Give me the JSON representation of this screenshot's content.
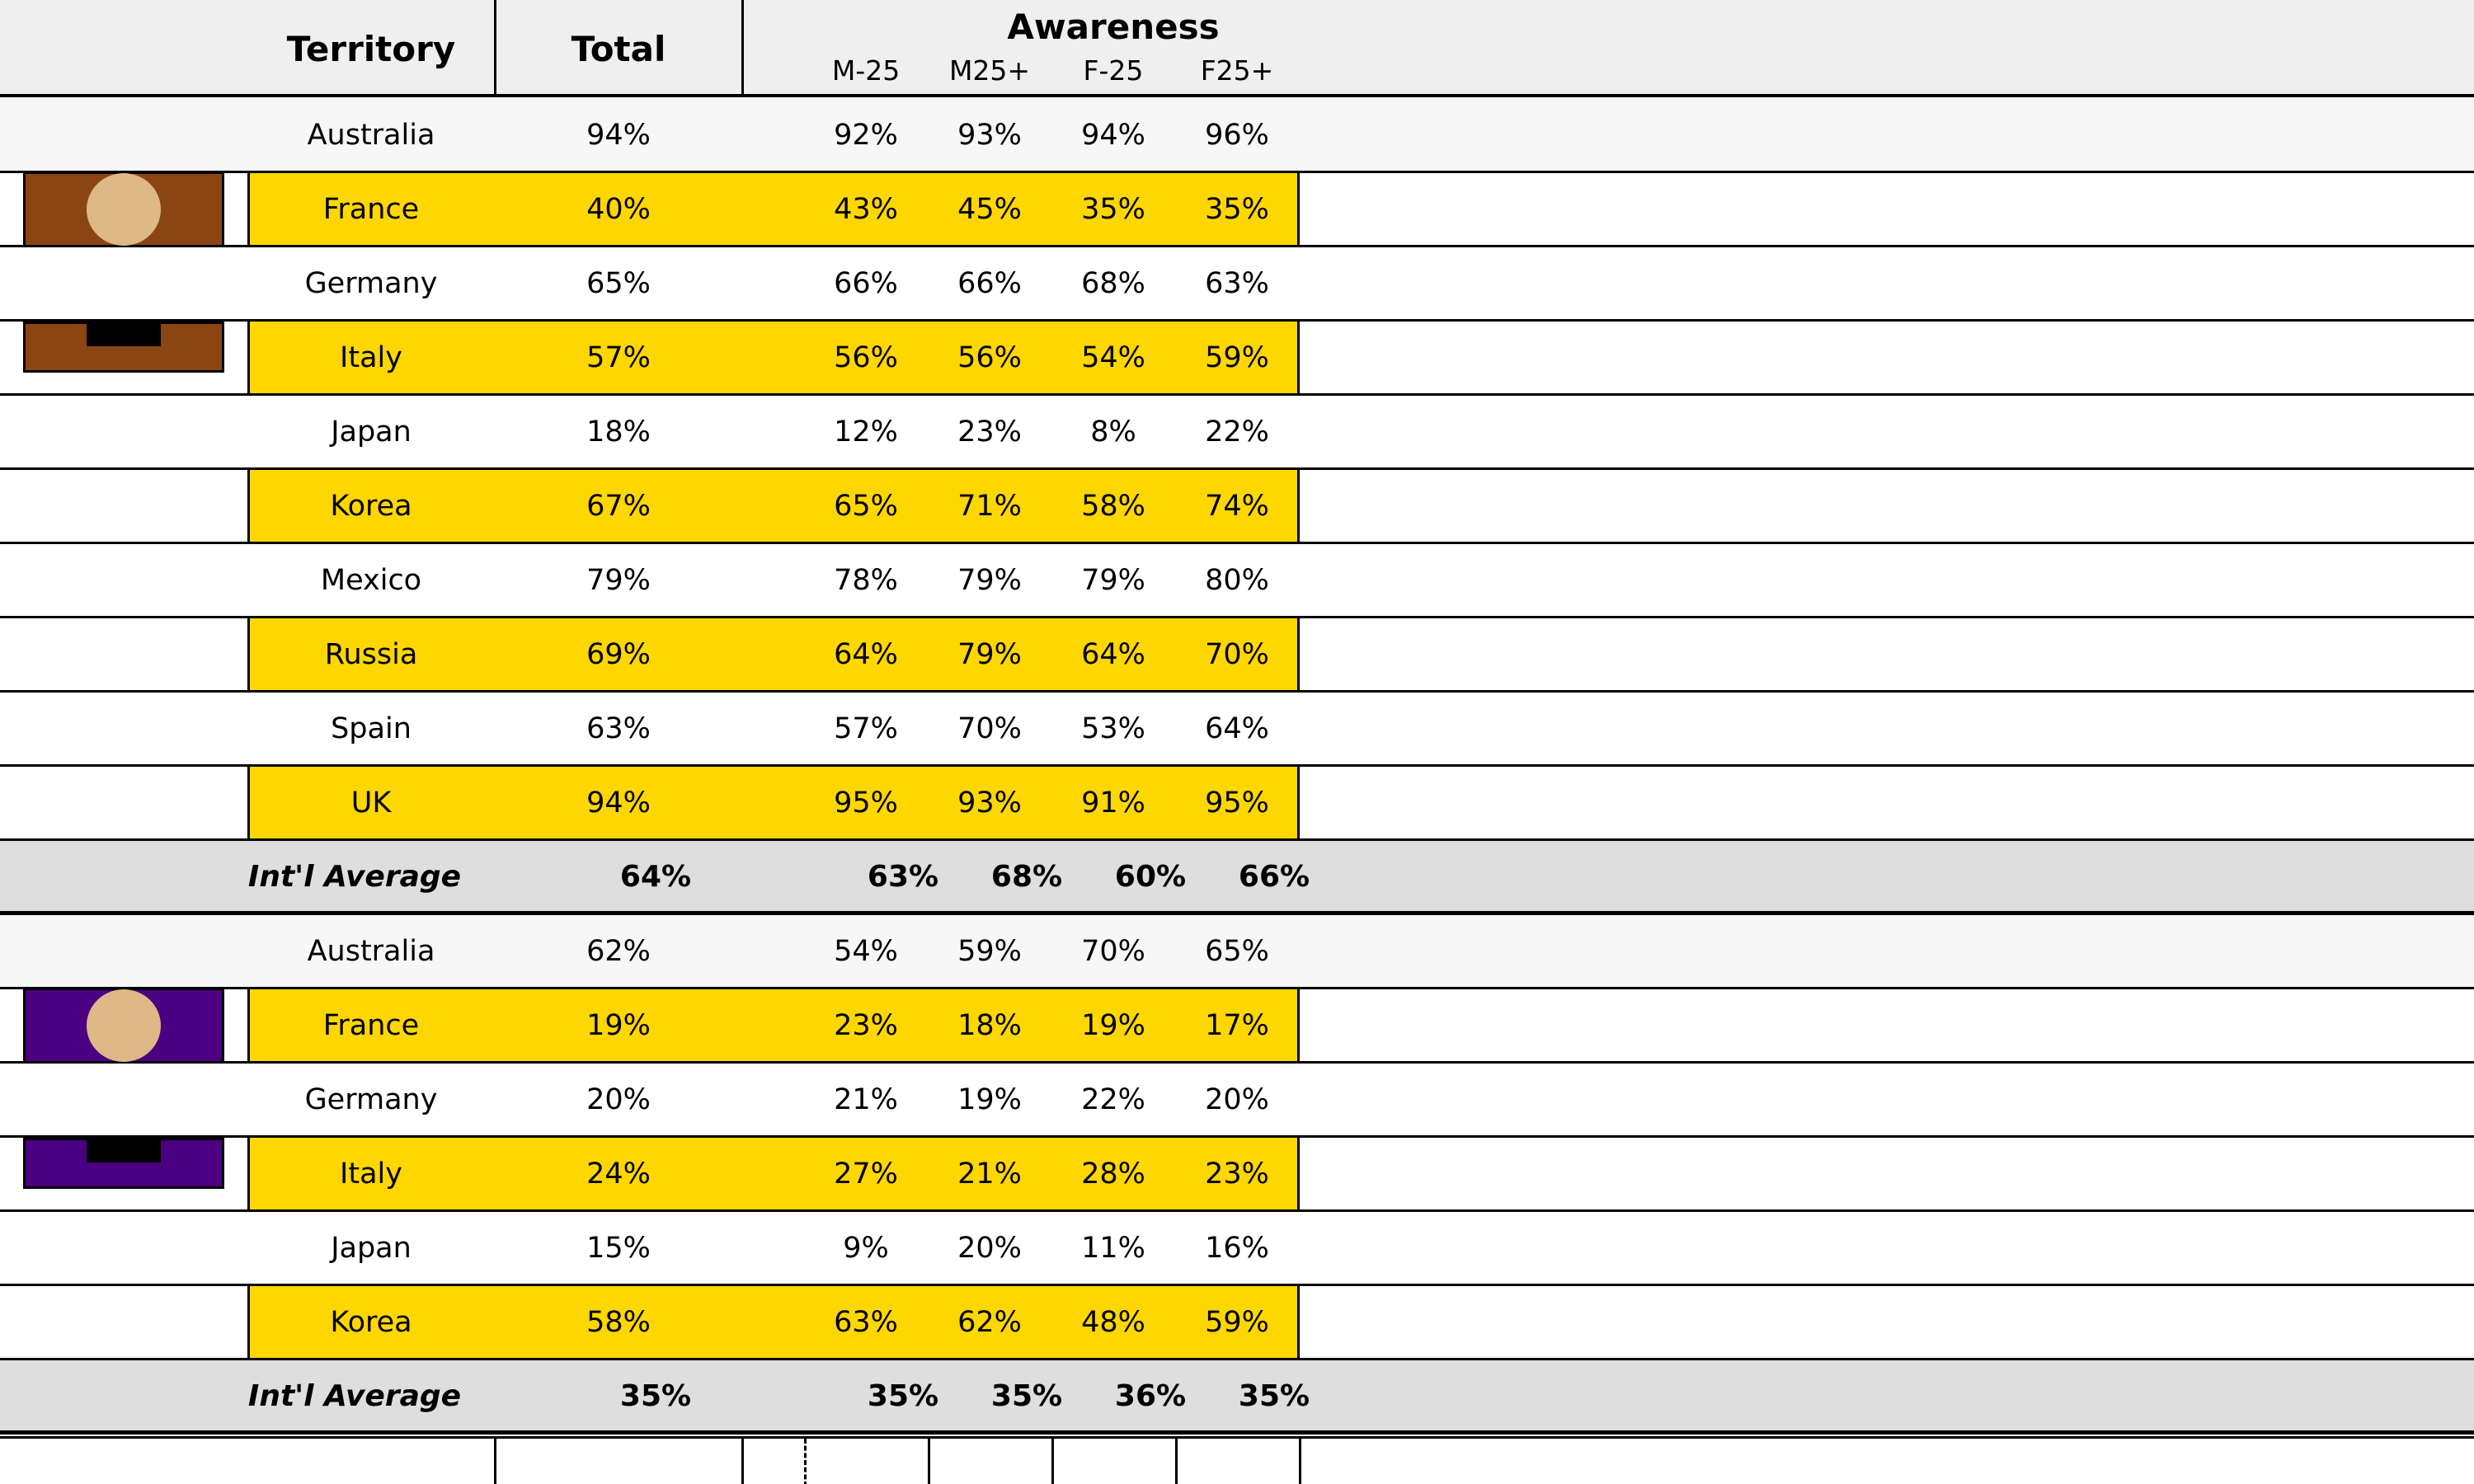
{
  "header": {
    "territory_label": "Territory",
    "total_label": "Total",
    "awareness_label": "Awareness",
    "segments": [
      "M-25",
      "M25+",
      "F-25",
      "F25+"
    ]
  },
  "colors": {
    "highlight": "#ffd700",
    "average_row": "#dedede",
    "header_bg": "#efefef",
    "group1_pictogram": "#8b4513",
    "group2_pictogram": "#4b0082",
    "pictogram_head": "#deb887"
  },
  "groups": [
    {
      "pictogram": "person-icon-brown",
      "rows": [
        {
          "territory": "Australia",
          "total": "94%",
          "m_under25": "92%",
          "m_25plus": "93%",
          "f_under25": "94%",
          "f_25plus": "96%"
        },
        {
          "territory": "France",
          "total": "40%",
          "m_under25": "43%",
          "m_25plus": "45%",
          "f_under25": "35%",
          "f_25plus": "35%"
        },
        {
          "territory": "Germany",
          "total": "65%",
          "m_under25": "66%",
          "m_25plus": "66%",
          "f_under25": "68%",
          "f_25plus": "63%"
        },
        {
          "territory": "Italy",
          "total": "57%",
          "m_under25": "56%",
          "m_25plus": "56%",
          "f_under25": "54%",
          "f_25plus": "59%"
        },
        {
          "territory": "Japan",
          "total": "18%",
          "m_under25": "12%",
          "m_25plus": "23%",
          "f_under25": "8%",
          "f_25plus": "22%"
        },
        {
          "territory": "Korea",
          "total": "67%",
          "m_under25": "65%",
          "m_25plus": "71%",
          "f_under25": "58%",
          "f_25plus": "74%"
        },
        {
          "territory": "Mexico",
          "total": "79%",
          "m_under25": "78%",
          "m_25plus": "79%",
          "f_under25": "79%",
          "f_25plus": "80%"
        },
        {
          "territory": "Russia",
          "total": "69%",
          "m_under25": "64%",
          "m_25plus": "79%",
          "f_under25": "64%",
          "f_25plus": "70%"
        },
        {
          "territory": "Spain",
          "total": "63%",
          "m_under25": "57%",
          "m_25plus": "70%",
          "f_under25": "53%",
          "f_25plus": "64%"
        },
        {
          "territory": "UK",
          "total": "94%",
          "m_under25": "95%",
          "m_25plus": "93%",
          "f_under25": "91%",
          "f_25plus": "95%"
        }
      ],
      "average": {
        "territory": "Int'l Average",
        "total": "64%",
        "m_under25": "63%",
        "m_25plus": "68%",
        "f_under25": "60%",
        "f_25plus": "66%"
      }
    },
    {
      "pictogram": "person-icon-purple",
      "rows": [
        {
          "territory": "Australia",
          "total": "62%",
          "m_under25": "54%",
          "m_25plus": "59%",
          "f_under25": "70%",
          "f_25plus": "65%"
        },
        {
          "territory": "France",
          "total": "19%",
          "m_under25": "23%",
          "m_25plus": "18%",
          "f_under25": "19%",
          "f_25plus": "17%"
        },
        {
          "territory": "Germany",
          "total": "20%",
          "m_under25": "21%",
          "m_25plus": "19%",
          "f_under25": "22%",
          "f_25plus": "20%"
        },
        {
          "territory": "Italy",
          "total": "24%",
          "m_under25": "27%",
          "m_25plus": "21%",
          "f_under25": "28%",
          "f_25plus": "23%"
        },
        {
          "territory": "Japan",
          "total": "15%",
          "m_under25": "9%",
          "m_25plus": "20%",
          "f_under25": "11%",
          "f_25plus": "16%"
        },
        {
          "territory": "Korea",
          "total": "58%",
          "m_under25": "63%",
          "m_25plus": "62%",
          "f_under25": "48%",
          "f_25plus": "59%"
        }
      ],
      "average": {
        "territory": "Int'l Average",
        "total": "35%",
        "m_under25": "35%",
        "m_25plus": "35%",
        "f_under25": "36%",
        "f_25plus": "35%"
      }
    }
  ],
  "chart_data": {
    "type": "table",
    "columns": [
      "Territory",
      "Total",
      "M-25",
      "M25+",
      "F-25",
      "F25+"
    ],
    "column_group": "Awareness",
    "groups": [
      {
        "rows": [
          [
            "Australia",
            94,
            92,
            93,
            94,
            96
          ],
          [
            "France",
            40,
            43,
            45,
            35,
            35
          ],
          [
            "Germany",
            65,
            66,
            66,
            68,
            63
          ],
          [
            "Italy",
            57,
            56,
            56,
            54,
            59
          ],
          [
            "Japan",
            18,
            12,
            23,
            8,
            22
          ],
          [
            "Korea",
            67,
            65,
            71,
            58,
            74
          ],
          [
            "Mexico",
            79,
            78,
            79,
            79,
            80
          ],
          [
            "Russia",
            69,
            64,
            79,
            64,
            70
          ],
          [
            "Spain",
            63,
            57,
            70,
            53,
            64
          ],
          [
            "UK",
            94,
            95,
            93,
            91,
            95
          ]
        ],
        "average": [
          "Int'l Average",
          64,
          63,
          68,
          60,
          66
        ]
      },
      {
        "rows": [
          [
            "Australia",
            62,
            54,
            59,
            70,
            65
          ],
          [
            "France",
            19,
            23,
            18,
            19,
            17
          ],
          [
            "Germany",
            20,
            21,
            19,
            22,
            20
          ],
          [
            "Italy",
            24,
            27,
            21,
            28,
            23
          ],
          [
            "Japan",
            15,
            9,
            20,
            11,
            16
          ],
          [
            "Korea",
            58,
            63,
            62,
            48,
            59
          ]
        ],
        "average": [
          "Int'l Average",
          35,
          35,
          35,
          36,
          35
        ]
      }
    ],
    "unit": "%"
  }
}
